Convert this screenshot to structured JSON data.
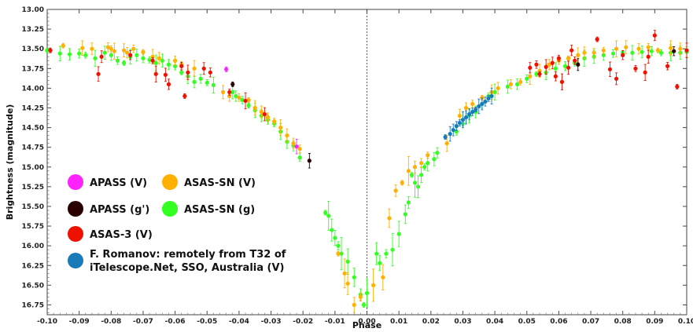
{
  "chart_data": {
    "type": "scatter",
    "xlabel": "Phase",
    "ylabel": "Brightness (magnitude)",
    "xlim": [
      -0.1,
      0.1
    ],
    "ylim": [
      13.0,
      16.875
    ],
    "y_inverted": true,
    "grid": false,
    "vline_at": 0.0,
    "x_ticks": [
      "-0.10",
      "-0.09",
      "-0.08",
      "-0.07",
      "-0.06",
      "-0.05",
      "-0.04",
      "-0.03",
      "-0.02",
      "-0.01",
      "0.00",
      "0.01",
      "0.02",
      "0.03",
      "0.04",
      "0.05",
      "0.06",
      "0.07",
      "0.08",
      "0.09",
      "0.10"
    ],
    "y_ticks": [
      "13.00",
      "13.25",
      "13.50",
      "13.75",
      "14.00",
      "14.25",
      "14.50",
      "14.75",
      "15.00",
      "15.25",
      "15.50",
      "15.75",
      "16.00",
      "16.25",
      "16.50",
      "16.75"
    ],
    "legend_placement": "center-left",
    "legend": [
      {
        "label": "APASS (V)",
        "color": "#ff22ff"
      },
      {
        "label": "ASAS-SN (V)",
        "color": "#ffb000"
      },
      {
        "label": "APASS (g')",
        "color": "#2a0000"
      },
      {
        "label": "ASAS-SN (g)",
        "color": "#33ff22"
      },
      {
        "label": "ASAS-3 (V)",
        "color": "#ee1100"
      },
      {
        "label": "F. Romanov: remotely from T32 of",
        "label2": "iTelescope.Net, SSO, Australia (V)",
        "color": "#1a7ab8"
      }
    ],
    "series": [
      {
        "name": "APASS (V)",
        "color": "#ff22ff",
        "points": [
          [
            -0.044,
            13.76
          ],
          [
            -0.022,
            14.74
          ]
        ]
      },
      {
        "name": "APASS (g')",
        "color": "#2a0000",
        "points": [
          [
            -0.042,
            13.95
          ],
          [
            -0.018,
            14.92
          ],
          [
            0.066,
            13.7
          ],
          [
            0.096,
            13.53
          ]
        ]
      },
      {
        "name": "ASAS-3 (V)",
        "color": "#ee1100",
        "points": [
          [
            -0.099,
            13.52
          ],
          [
            -0.084,
            13.82
          ],
          [
            -0.083,
            13.6
          ],
          [
            -0.074,
            13.58
          ],
          [
            -0.067,
            13.65
          ],
          [
            -0.066,
            13.82
          ],
          [
            -0.063,
            13.83
          ],
          [
            -0.062,
            13.95
          ],
          [
            -0.058,
            13.72
          ],
          [
            -0.057,
            14.1
          ],
          [
            -0.056,
            13.8
          ],
          [
            -0.051,
            13.75
          ],
          [
            -0.049,
            13.8
          ],
          [
            -0.043,
            14.05
          ],
          [
            -0.038,
            14.16
          ],
          [
            -0.032,
            14.33
          ],
          [
            0.051,
            13.74
          ],
          [
            0.053,
            13.7
          ],
          [
            0.054,
            13.82
          ],
          [
            0.056,
            13.73
          ],
          [
            0.058,
            13.68
          ],
          [
            0.059,
            13.85
          ],
          [
            0.06,
            13.62
          ],
          [
            0.061,
            13.92
          ],
          [
            0.063,
            13.74
          ],
          [
            0.064,
            13.52
          ],
          [
            0.065,
            13.65
          ],
          [
            0.072,
            13.38
          ],
          [
            0.076,
            13.76
          ],
          [
            0.078,
            13.88
          ],
          [
            0.08,
            13.58
          ],
          [
            0.084,
            13.75
          ],
          [
            0.087,
            13.8
          ],
          [
            0.088,
            13.6
          ],
          [
            0.09,
            13.33
          ],
          [
            0.094,
            13.72
          ],
          [
            0.097,
            13.98
          ],
          [
            0.1,
            13.52
          ]
        ]
      },
      {
        "name": "ASAS-SN (V)",
        "color": "#ffb000",
        "points": [
          [
            -0.095,
            13.46
          ],
          [
            -0.089,
            13.49
          ],
          [
            -0.086,
            13.5
          ],
          [
            -0.081,
            13.48
          ],
          [
            -0.08,
            13.5
          ],
          [
            -0.079,
            13.53
          ],
          [
            -0.076,
            13.52
          ],
          [
            -0.075,
            13.55
          ],
          [
            -0.073,
            13.5
          ],
          [
            -0.07,
            13.54
          ],
          [
            -0.067,
            13.6
          ],
          [
            -0.065,
            13.62
          ],
          [
            -0.06,
            13.65
          ],
          [
            -0.058,
            13.7
          ],
          [
            -0.054,
            13.75
          ],
          [
            -0.045,
            14.05
          ],
          [
            -0.043,
            14.1
          ],
          [
            -0.04,
            14.12
          ],
          [
            -0.037,
            14.15
          ],
          [
            -0.035,
            14.25
          ],
          [
            -0.033,
            14.3
          ],
          [
            -0.031,
            14.37
          ],
          [
            -0.029,
            14.42
          ],
          [
            -0.027,
            14.5
          ],
          [
            -0.025,
            14.6
          ],
          [
            -0.023,
            14.7
          ],
          [
            -0.021,
            14.77
          ],
          [
            -0.009,
            16.1
          ],
          [
            -0.007,
            16.35
          ],
          [
            -0.006,
            16.48
          ],
          [
            -0.004,
            16.75
          ],
          [
            -0.002,
            16.65
          ],
          [
            0.002,
            16.5
          ],
          [
            0.005,
            16.4
          ],
          [
            0.007,
            15.65
          ],
          [
            0.009,
            15.3
          ],
          [
            0.011,
            15.2
          ],
          [
            0.013,
            15.05
          ],
          [
            0.015,
            15.0
          ],
          [
            0.017,
            14.95
          ],
          [
            0.019,
            14.85
          ],
          [
            0.025,
            14.7
          ],
          [
            0.029,
            14.35
          ],
          [
            0.031,
            14.25
          ],
          [
            0.033,
            14.2
          ],
          [
            0.036,
            14.12
          ],
          [
            0.039,
            14.05
          ],
          [
            0.041,
            14.0
          ],
          [
            0.045,
            13.95
          ],
          [
            0.048,
            13.92
          ],
          [
            0.051,
            13.85
          ],
          [
            0.054,
            13.78
          ],
          [
            0.057,
            13.7
          ],
          [
            0.06,
            13.65
          ],
          [
            0.063,
            13.62
          ],
          [
            0.066,
            13.58
          ],
          [
            0.068,
            13.55
          ],
          [
            0.071,
            13.55
          ],
          [
            0.074,
            13.52
          ],
          [
            0.078,
            13.5
          ],
          [
            0.081,
            13.48
          ],
          [
            0.085,
            13.5
          ],
          [
            0.088,
            13.48
          ],
          [
            0.091,
            13.52
          ],
          [
            0.095,
            13.49
          ],
          [
            0.098,
            13.5
          ]
        ]
      },
      {
        "name": "ASAS-SN (g)",
        "color": "#33ff22",
        "points": [
          [
            -0.1,
            13.52
          ],
          [
            -0.096,
            13.56
          ],
          [
            -0.093,
            13.57
          ],
          [
            -0.09,
            13.56
          ],
          [
            -0.088,
            13.58
          ],
          [
            -0.085,
            13.62
          ],
          [
            -0.082,
            13.55
          ],
          [
            -0.08,
            13.58
          ],
          [
            -0.078,
            13.65
          ],
          [
            -0.076,
            13.68
          ],
          [
            -0.074,
            13.6
          ],
          [
            -0.072,
            13.58
          ],
          [
            -0.07,
            13.62
          ],
          [
            -0.068,
            13.64
          ],
          [
            -0.066,
            13.68
          ],
          [
            -0.064,
            13.65
          ],
          [
            -0.062,
            13.7
          ],
          [
            -0.06,
            13.72
          ],
          [
            -0.058,
            13.8
          ],
          [
            -0.056,
            13.85
          ],
          [
            -0.054,
            13.92
          ],
          [
            -0.052,
            13.88
          ],
          [
            -0.05,
            13.93
          ],
          [
            -0.048,
            13.96
          ],
          [
            -0.042,
            14.05
          ],
          [
            -0.041,
            14.1
          ],
          [
            -0.039,
            14.15
          ],
          [
            -0.037,
            14.22
          ],
          [
            -0.035,
            14.28
          ],
          [
            -0.033,
            14.35
          ],
          [
            -0.031,
            14.4
          ],
          [
            -0.029,
            14.45
          ],
          [
            -0.027,
            14.55
          ],
          [
            -0.025,
            14.68
          ],
          [
            -0.023,
            14.73
          ],
          [
            -0.021,
            14.88
          ],
          [
            -0.013,
            15.58
          ],
          [
            -0.012,
            15.62
          ],
          [
            -0.011,
            15.8
          ],
          [
            -0.01,
            15.9
          ],
          [
            -0.009,
            16.0
          ],
          [
            -0.008,
            16.1
          ],
          [
            -0.006,
            16.2
          ],
          [
            -0.004,
            16.4
          ],
          [
            -0.002,
            16.62
          ],
          [
            -0.001,
            16.75
          ],
          [
            0.0,
            16.6
          ],
          [
            0.003,
            16.1
          ],
          [
            0.004,
            16.22
          ],
          [
            0.006,
            16.1
          ],
          [
            0.008,
            16.05
          ],
          [
            0.01,
            15.85
          ],
          [
            0.012,
            15.6
          ],
          [
            0.013,
            15.45
          ],
          [
            0.014,
            15.1
          ],
          [
            0.015,
            15.2
          ],
          [
            0.016,
            15.25
          ],
          [
            0.017,
            15.1
          ],
          [
            0.018,
            15.0
          ],
          [
            0.019,
            14.95
          ],
          [
            0.021,
            14.9
          ],
          [
            0.022,
            14.82
          ],
          [
            0.028,
            14.55
          ],
          [
            0.03,
            14.45
          ],
          [
            0.032,
            14.35
          ],
          [
            0.034,
            14.3
          ],
          [
            0.036,
            14.2
          ],
          [
            0.038,
            14.1
          ],
          [
            0.04,
            14.05
          ],
          [
            0.044,
            13.98
          ],
          [
            0.047,
            13.95
          ],
          [
            0.05,
            13.88
          ],
          [
            0.053,
            13.82
          ],
          [
            0.056,
            13.8
          ],
          [
            0.059,
            13.75
          ],
          [
            0.062,
            13.72
          ],
          [
            0.065,
            13.68
          ],
          [
            0.068,
            13.62
          ],
          [
            0.071,
            13.6
          ],
          [
            0.074,
            13.58
          ],
          [
            0.077,
            13.56
          ],
          [
            0.08,
            13.55
          ],
          [
            0.083,
            13.55
          ],
          [
            0.086,
            13.54
          ],
          [
            0.089,
            13.53
          ],
          [
            0.092,
            13.55
          ],
          [
            0.095,
            13.55
          ],
          [
            0.098,
            13.55
          ],
          [
            0.1,
            13.54
          ]
        ]
      },
      {
        "name": "F. Romanov: remotely from T32 of iTelescope.Net, SSO, Australia (V)",
        "color": "#1a7ab8",
        "points": [
          [
            0.0245,
            14.62
          ],
          [
            0.026,
            14.58
          ],
          [
            0.027,
            14.53
          ],
          [
            0.028,
            14.48
          ],
          [
            0.029,
            14.44
          ],
          [
            0.03,
            14.4
          ],
          [
            0.031,
            14.37
          ],
          [
            0.032,
            14.33
          ],
          [
            0.033,
            14.3
          ],
          [
            0.034,
            14.27
          ],
          [
            0.035,
            14.23
          ],
          [
            0.036,
            14.2
          ],
          [
            0.037,
            14.17
          ],
          [
            0.038,
            14.13
          ],
          [
            0.039,
            14.1
          ]
        ]
      }
    ]
  }
}
